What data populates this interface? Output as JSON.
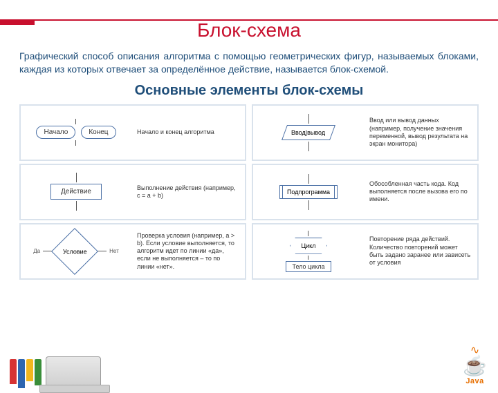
{
  "colors": {
    "accent": "#c8102e",
    "heading": "#1f4e79",
    "shapeBorder": "#4a6fa5",
    "cellBorder": "#d9e2ec",
    "background": "#ffffff"
  },
  "title": "Блок-схема",
  "description": "Графический способ описания алгоритма с помощью геометрических фигур, называемых блоками, каждая из которых отвечает за определённое действие, называется блок-схемой.",
  "subheading": "Основные элементы блок-схемы",
  "cells": [
    {
      "id": "terminator",
      "shapes": {
        "start": "Начало",
        "end": "Конец"
      },
      "text": "Начало и конец алгоритма"
    },
    {
      "id": "io",
      "shapes": {
        "label": "Ввод|вывод"
      },
      "text": "Ввод или вывод данных (например, получение значения переменной, вывод результата на экран монитора)"
    },
    {
      "id": "process",
      "shapes": {
        "label": "Действие"
      },
      "text": "Выполнение действия (например, c = a + b)"
    },
    {
      "id": "subroutine",
      "shapes": {
        "label": "Подпрограмма"
      },
      "text": "Обособленная часть кода. Код выполняется после вызова его по имени."
    },
    {
      "id": "decision",
      "shapes": {
        "label": "Условие",
        "yes": "Да",
        "no": "Нет"
      },
      "text": "Проверка условия (например, a > b). Если условие выполняется, то алгоритм идет по линии «да», если не выполняется – то по линии «нет»."
    },
    {
      "id": "loop",
      "shapes": {
        "label": "Цикл",
        "body": "Тело цикла"
      },
      "text": "Повторение ряда действий. Количество повторений может быть задано заранее или зависеть от условия"
    }
  ],
  "javaLabel": "Java",
  "books": [
    {
      "color": "#d63333",
      "height": 36
    },
    {
      "color": "#2e66b0",
      "height": 42
    },
    {
      "color": "#f2b71f",
      "height": 32
    },
    {
      "color": "#3a8e3a",
      "height": 38
    }
  ]
}
